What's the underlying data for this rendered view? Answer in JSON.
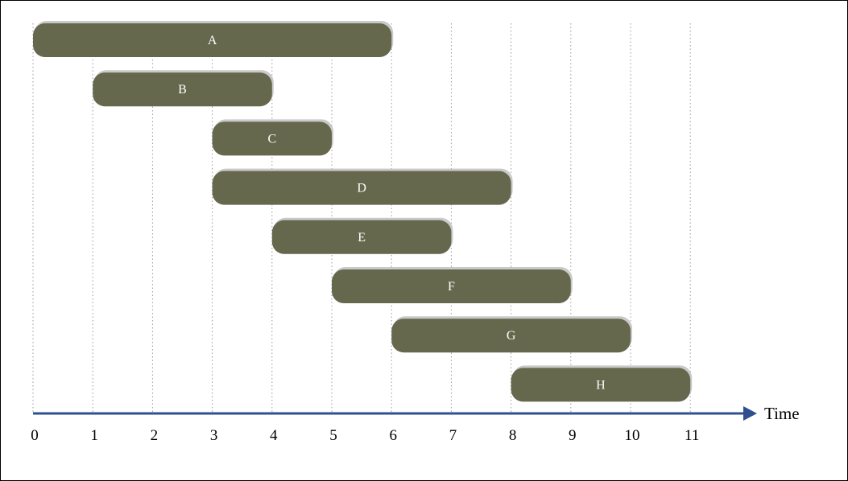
{
  "chart_data": {
    "type": "bar",
    "orientation": "horizontal-range",
    "title": "",
    "xlabel": "Time",
    "ylabel": "",
    "xlim": [
      0,
      11
    ],
    "x_ticks": [
      0,
      1,
      2,
      3,
      4,
      5,
      6,
      7,
      8,
      9,
      10,
      11
    ],
    "grid": "vertical-dotted",
    "colors": {
      "bar": "#65684c",
      "bar_shadow": "#c9c9c9",
      "axis": "#2f4f8f",
      "grid": "#9a9a9a"
    },
    "tasks": [
      {
        "label": "A",
        "start": 0,
        "end": 6
      },
      {
        "label": "B",
        "start": 1,
        "end": 4
      },
      {
        "label": "C",
        "start": 3,
        "end": 5
      },
      {
        "label": "D",
        "start": 3,
        "end": 8
      },
      {
        "label": "E",
        "start": 4,
        "end": 7
      },
      {
        "label": "F",
        "start": 5,
        "end": 9
      },
      {
        "label": "G",
        "start": 6,
        "end": 10
      },
      {
        "label": "H",
        "start": 8,
        "end": 11
      }
    ]
  }
}
